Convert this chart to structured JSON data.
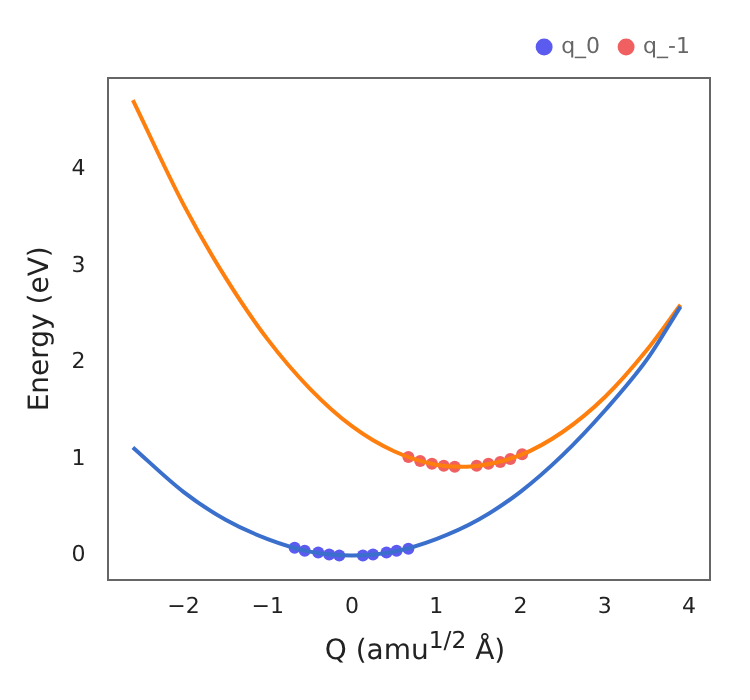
{
  "chart_data": {
    "type": "line",
    "xlabel": "Q (amu$^{1/2}$ Å)",
    "ylabel": "Energy (eV)",
    "xlim": [
      -2.9,
      4.25
    ],
    "xticks": [
      -2,
      -1,
      0,
      1,
      2,
      3,
      4
    ],
    "ylim": [
      -0.25,
      4.95
    ],
    "yticks": [
      0,
      1,
      2,
      3,
      4
    ],
    "grid": false,
    "legend": "top right",
    "series": [
      {
        "type": "line",
        "color": "#3a70cc",
        "x": [
          -2.6,
          -2,
          -1.5,
          -1,
          -0.5,
          0,
          0.5,
          1,
          1.5,
          2,
          2.5,
          3,
          3.5,
          3.9
        ],
        "values": [
          1.12,
          0.66,
          0.37,
          0.17,
          0.04,
          0,
          0.04,
          0.17,
          0.37,
          0.66,
          1.04,
          1.5,
          2.03,
          2.58
        ]
      },
      {
        "type": "line",
        "color": "#ff7f0e",
        "x": [
          -2.6,
          -2,
          -1.5,
          -1,
          -0.5,
          0,
          0.5,
          1,
          1.3,
          1.5,
          2,
          2.5,
          3,
          3.5,
          3.9
        ],
        "values": [
          4.72,
          3.64,
          2.88,
          2.24,
          1.73,
          1.34,
          1.08,
          0.94,
          0.92,
          0.93,
          1.04,
          1.28,
          1.64,
          2.13,
          2.6
        ]
      },
      {
        "type": "scatter",
        "name": "q_0",
        "color": "#5b5bf0",
        "x": [
          -0.68,
          -0.56,
          -0.4,
          -0.27,
          -0.15,
          0.13,
          0.25,
          0.41,
          0.53,
          0.67
        ],
        "values": [
          0.08,
          0.05,
          0.03,
          0.01,
          0.0,
          0.0,
          0.01,
          0.03,
          0.05,
          0.07
        ]
      },
      {
        "type": "scatter",
        "name": "q_-1",
        "color": "#f06060",
        "x": [
          0.67,
          0.81,
          0.95,
          1.09,
          1.22,
          1.48,
          1.62,
          1.76,
          1.88,
          2.02
        ],
        "values": [
          1.02,
          0.98,
          0.95,
          0.93,
          0.92,
          0.93,
          0.95,
          0.97,
          1.0,
          1.05
        ]
      }
    ]
  }
}
